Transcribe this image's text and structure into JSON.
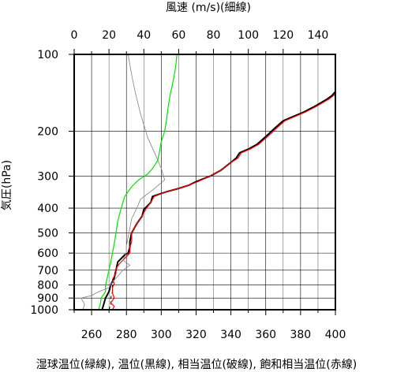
{
  "chart_data": {
    "type": "line",
    "title": "",
    "top_axis": {
      "label": "風速 (m/s)(細線)",
      "range": [
        0,
        150
      ],
      "ticks": [
        0,
        20,
        40,
        60,
        80,
        100,
        120,
        140
      ]
    },
    "x_axis": {
      "label": "湿球温位(緑線), 温位(黒線), 相当温位(破線), 飽和相当温位(赤線)",
      "range": [
        250,
        400
      ],
      "ticks": [
        260,
        280,
        300,
        320,
        340,
        360,
        380,
        400
      ]
    },
    "y_axis": {
      "label": "気圧(hPa)",
      "scale": "log",
      "reversed": true,
      "range": [
        1000,
        100
      ],
      "ticks": [
        100,
        200,
        300,
        400,
        500,
        600,
        700,
        800,
        900,
        1000
      ]
    },
    "grid": true,
    "series": [
      {
        "name": "湿球温位",
        "axis": "bottom",
        "color": "#00e000",
        "style": "solid",
        "points": [
          [
            264,
            1000
          ],
          [
            265,
            950
          ],
          [
            265.5,
            900
          ],
          [
            268,
            850
          ],
          [
            268,
            800
          ],
          [
            269,
            750
          ],
          [
            270,
            700
          ],
          [
            271,
            650
          ],
          [
            272,
            600
          ],
          [
            273,
            550
          ],
          [
            274,
            500
          ],
          [
            275,
            450
          ],
          [
            277,
            400
          ],
          [
            279,
            360
          ],
          [
            283,
            330
          ],
          [
            287,
            310
          ],
          [
            292,
            295
          ],
          [
            295,
            280
          ],
          [
            298,
            260
          ],
          [
            299,
            240
          ],
          [
            300,
            220
          ],
          [
            302,
            200
          ],
          [
            303,
            180
          ],
          [
            304,
            160
          ],
          [
            305,
            145
          ],
          [
            306,
            135
          ],
          [
            307,
            125
          ],
          [
            308,
            115
          ],
          [
            308.5,
            108
          ],
          [
            309,
            100
          ]
        ]
      },
      {
        "name": "温位",
        "axis": "bottom",
        "color": "#000000",
        "style": "solid",
        "points": [
          [
            266,
            1000
          ],
          [
            267,
            950
          ],
          [
            268,
            900
          ],
          [
            270,
            850
          ],
          [
            271,
            800
          ],
          [
            273,
            750
          ],
          [
            274,
            700
          ],
          [
            275,
            650
          ],
          [
            277,
            630
          ],
          [
            279,
            610
          ],
          [
            281,
            600
          ],
          [
            282,
            570
          ],
          [
            282,
            540
          ],
          [
            283,
            500
          ],
          [
            286,
            460
          ],
          [
            289,
            430
          ],
          [
            290,
            405
          ],
          [
            294,
            380
          ],
          [
            295,
            360
          ],
          [
            303,
            345
          ],
          [
            310,
            335
          ],
          [
            316,
            325
          ],
          [
            320,
            315
          ],
          [
            328,
            300
          ],
          [
            334,
            285
          ],
          [
            340,
            265
          ],
          [
            343,
            255
          ],
          [
            345,
            243
          ],
          [
            350,
            235
          ],
          [
            355,
            225
          ],
          [
            360,
            210
          ],
          [
            365,
            195
          ],
          [
            370,
            182
          ],
          [
            376,
            175
          ],
          [
            382,
            168
          ],
          [
            388,
            160
          ],
          [
            395,
            150
          ],
          [
            398,
            145
          ],
          [
            400,
            140
          ]
        ]
      },
      {
        "name": "相当温位",
        "axis": "bottom",
        "color": "#000000",
        "style": "dashed",
        "points": [
          [
            270,
            1000
          ],
          [
            271,
            950
          ],
          [
            271,
            900
          ],
          [
            272,
            850
          ],
          [
            272,
            800
          ],
          [
            273,
            750
          ],
          [
            274,
            700
          ],
          [
            275,
            650
          ],
          [
            277,
            630
          ],
          [
            279,
            610
          ],
          [
            281,
            600
          ],
          [
            282,
            570
          ],
          [
            282,
            540
          ],
          [
            283,
            500
          ],
          [
            286,
            460
          ],
          [
            289,
            430
          ],
          [
            290,
            405
          ],
          [
            294,
            380
          ],
          [
            295,
            360
          ],
          [
            303,
            345
          ],
          [
            310,
            335
          ],
          [
            316,
            325
          ],
          [
            320,
            315
          ],
          [
            328,
            300
          ],
          [
            334,
            285
          ],
          [
            340,
            265
          ],
          [
            343,
            255
          ],
          [
            345,
            243
          ],
          [
            350,
            235
          ],
          [
            355,
            225
          ],
          [
            360,
            210
          ],
          [
            365,
            195
          ],
          [
            370,
            182
          ],
          [
            376,
            175
          ],
          [
            382,
            168
          ],
          [
            388,
            160
          ],
          [
            395,
            150
          ],
          [
            398,
            145
          ],
          [
            400,
            140
          ]
        ]
      },
      {
        "name": "飽和相当温位",
        "axis": "bottom",
        "color": "#ff0000",
        "style": "solid",
        "points": [
          [
            272,
            1000
          ],
          [
            273,
            970
          ],
          [
            271,
            940
          ],
          [
            273,
            900
          ],
          [
            272,
            860
          ],
          [
            272,
            820
          ],
          [
            273,
            790
          ],
          [
            272,
            760
          ],
          [
            274,
            720
          ],
          [
            274,
            690
          ],
          [
            276,
            660
          ],
          [
            278,
            640
          ],
          [
            280,
            620
          ],
          [
            282,
            600
          ],
          [
            282,
            570
          ],
          [
            283,
            540
          ],
          [
            283,
            500
          ],
          [
            286,
            460
          ],
          [
            289,
            430
          ],
          [
            291,
            405
          ],
          [
            294,
            380
          ],
          [
            296,
            360
          ],
          [
            303,
            345
          ],
          [
            310,
            335
          ],
          [
            316,
            325
          ],
          [
            321,
            315
          ],
          [
            328,
            300
          ],
          [
            334,
            285
          ],
          [
            340,
            265
          ],
          [
            344,
            255
          ],
          [
            346,
            243
          ],
          [
            351,
            235
          ],
          [
            356,
            225
          ],
          [
            361,
            210
          ],
          [
            366,
            195
          ],
          [
            371,
            182
          ],
          [
            377,
            175
          ],
          [
            383,
            168
          ],
          [
            389,
            160
          ],
          [
            396,
            150
          ],
          [
            399,
            145
          ],
          [
            400,
            142
          ]
        ]
      },
      {
        "name": "風速",
        "axis": "top",
        "color": "#808080",
        "style": "thin",
        "points": [
          [
            5,
            1000
          ],
          [
            6,
            950
          ],
          [
            4,
            900
          ],
          [
            10,
            880
          ],
          [
            14,
            850
          ],
          [
            20,
            820
          ],
          [
            22,
            780
          ],
          [
            25,
            740
          ],
          [
            28,
            700
          ],
          [
            32,
            670
          ],
          [
            28,
            640
          ],
          [
            30,
            600
          ],
          [
            30,
            560
          ],
          [
            31,
            520
          ],
          [
            32,
            480
          ],
          [
            33,
            440
          ],
          [
            36,
            400
          ],
          [
            38,
            370
          ],
          [
            45,
            340
          ],
          [
            52,
            310
          ],
          [
            50,
            280
          ],
          [
            47,
            250
          ],
          [
            42,
            210
          ],
          [
            38,
            170
          ],
          [
            35,
            140
          ],
          [
            33,
            120
          ],
          [
            32,
            110
          ],
          [
            31,
            100
          ]
        ]
      }
    ]
  }
}
